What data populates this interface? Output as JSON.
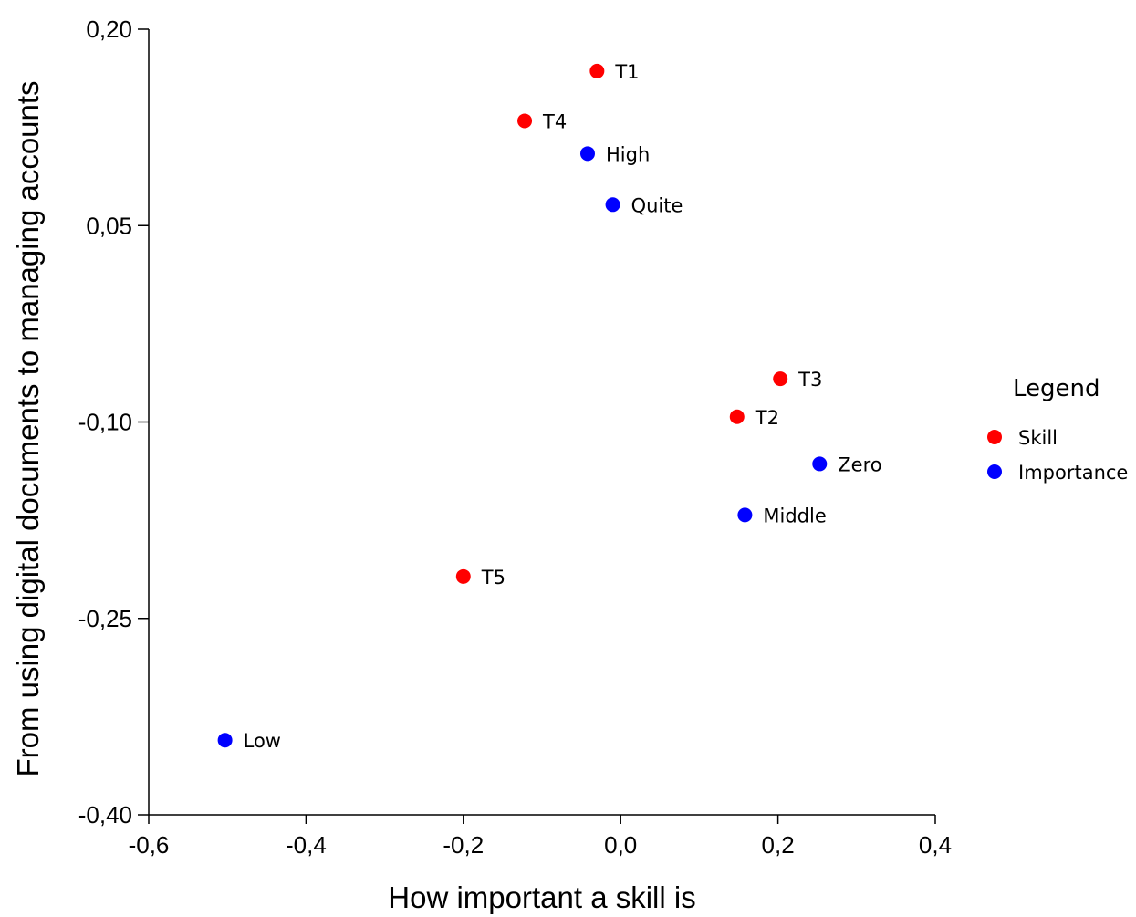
{
  "chart_data": {
    "type": "scatter",
    "title": "",
    "xlabel": "How important a skill is",
    "ylabel": "From using digital documents to managing accounts",
    "xlim": [
      -0.6,
      0.4
    ],
    "ylim": [
      -0.4,
      0.2
    ],
    "xticks": [
      -0.6,
      -0.4,
      -0.2,
      0.0,
      0.2,
      0.4
    ],
    "yticks": [
      -0.4,
      -0.25,
      -0.1,
      0.05,
      0.2
    ],
    "xtick_labels": [
      "-0,6",
      "-0,4",
      "-0,2",
      "0,0",
      "0,2",
      "0,4"
    ],
    "ytick_labels": [
      "-0,40",
      "-0,25",
      "-0,10",
      "0,05",
      "0,20"
    ],
    "grid": false,
    "legend": {
      "title": "Legend",
      "placement": "right",
      "entries": [
        "Skill",
        "Importance"
      ]
    },
    "series": [
      {
        "name": "Skill",
        "color": "#ff0000",
        "points": [
          {
            "label": "T1",
            "x": -0.03,
            "y": 0.168
          },
          {
            "label": "T4",
            "x": -0.122,
            "y": 0.13
          },
          {
            "label": "T3",
            "x": 0.203,
            "y": -0.067
          },
          {
            "label": "T2",
            "x": 0.148,
            "y": -0.096
          },
          {
            "label": "T5",
            "x": -0.2,
            "y": -0.218
          }
        ]
      },
      {
        "name": "Importance",
        "color": "#0000ff",
        "points": [
          {
            "label": "High",
            "x": -0.042,
            "y": 0.105
          },
          {
            "label": "Quite",
            "x": -0.01,
            "y": 0.066
          },
          {
            "label": "Zero",
            "x": 0.253,
            "y": -0.132
          },
          {
            "label": "Middle",
            "x": 0.158,
            "y": -0.171
          },
          {
            "label": "Low",
            "x": -0.503,
            "y": -0.343
          }
        ]
      }
    ]
  }
}
